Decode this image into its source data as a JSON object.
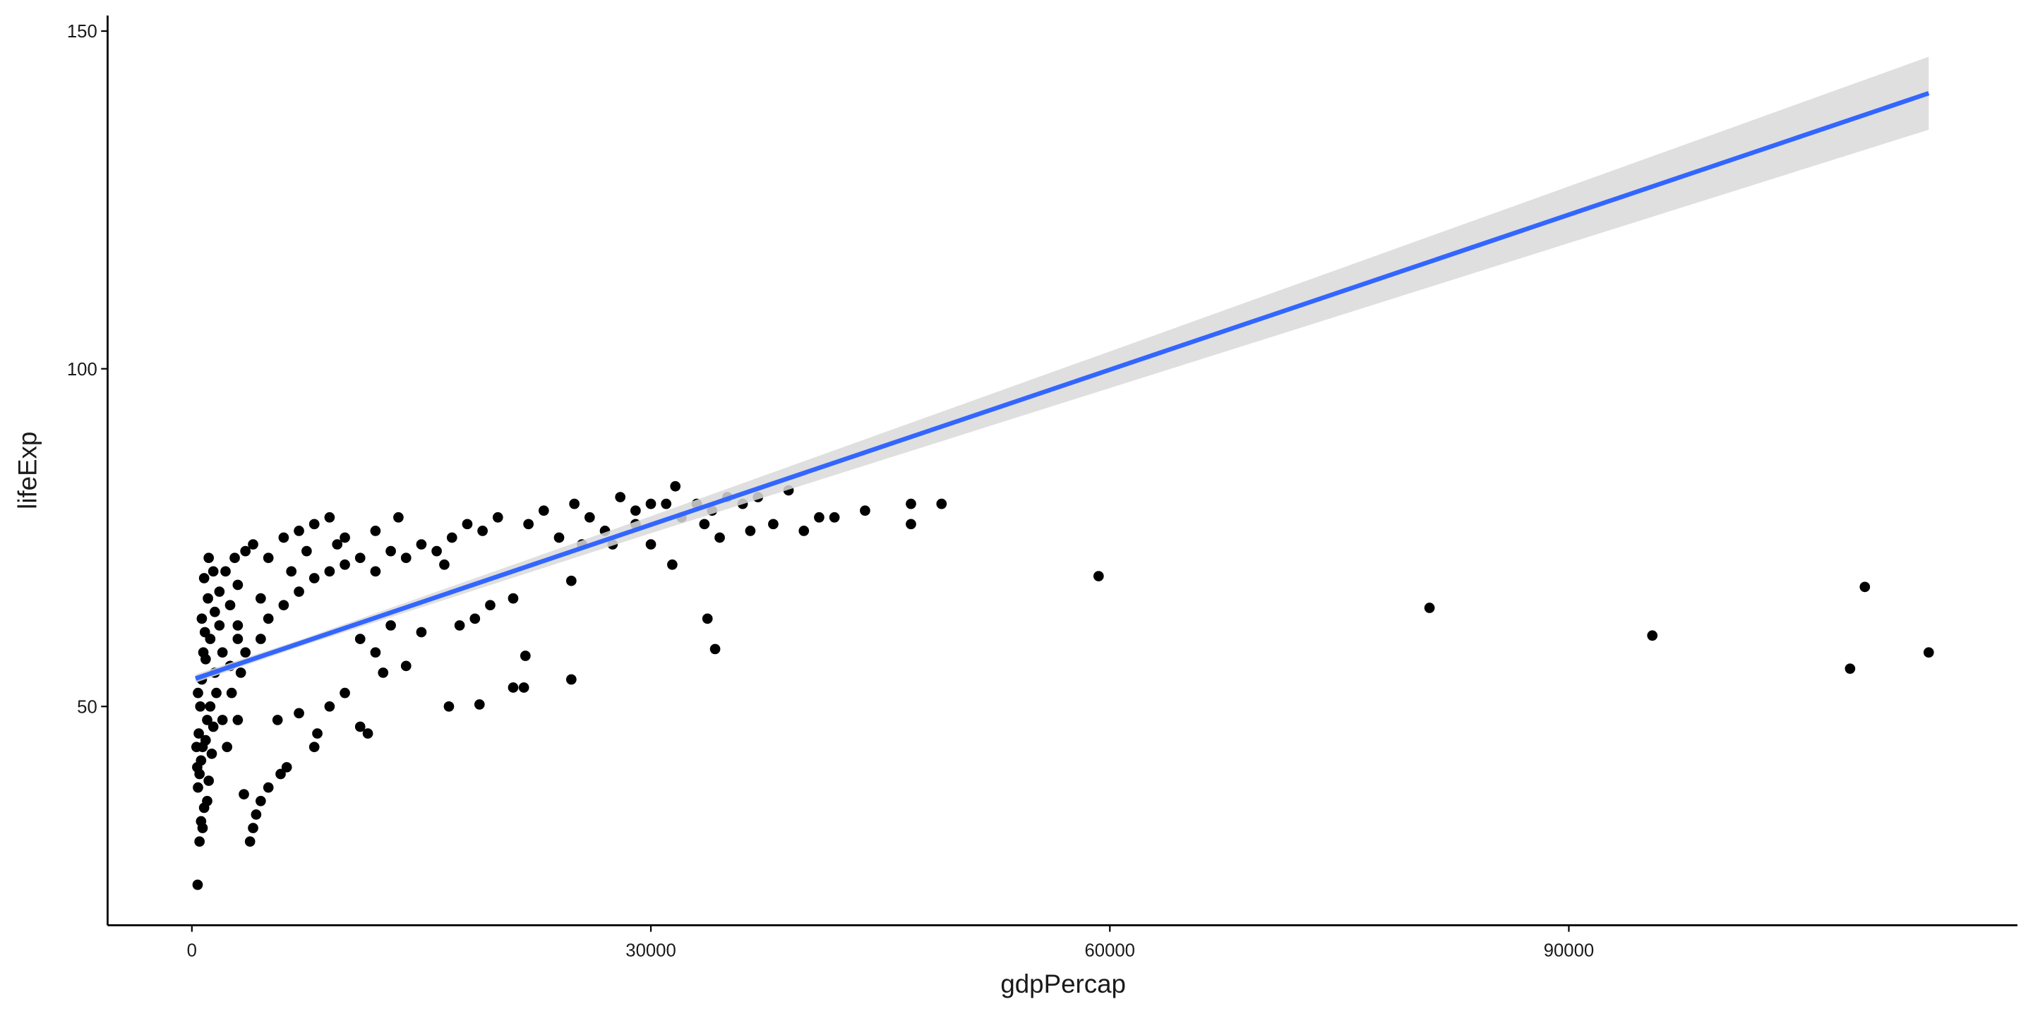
{
  "chart_data": {
    "type": "scatter",
    "x_label": "gdpPercap",
    "y_label": "lifeExp",
    "xlim": [
      -5508,
      119322
    ],
    "ylim": [
      17.6,
      152.3
    ],
    "xticks": [
      0,
      30000,
      60000,
      90000
    ],
    "yticks": [
      50,
      100,
      150
    ],
    "point_color": "#000000",
    "x": [
      376,
      500,
      700,
      800,
      400,
      600,
      900,
      1000,
      1200,
      500,
      700,
      1500,
      2000,
      1800,
      2500,
      3000,
      1000,
      1100,
      1300,
      1400,
      1600,
      900,
      1200,
      1500,
      2200,
      2800,
      3500,
      4000,
      600,
      350,
      450,
      550,
      650,
      750,
      850,
      1050,
      300,
      400,
      2600,
      3000,
      3200,
      3500,
      3800,
      4000,
      4200,
      3400,
      4500,
      5000,
      5800,
      6200,
      5600,
      7000,
      8000,
      8200,
      9000,
      10000,
      11000,
      11500,
      12000,
      12500,
      13000,
      14000,
      15000,
      4500,
      5000,
      6000,
      7000,
      8000,
      9000,
      10000,
      11000,
      12000,
      13000,
      14000,
      15000,
      5000,
      6000,
      7000,
      8000,
      9000,
      10000,
      12000,
      13500,
      16000,
      17000,
      18000,
      19000,
      20000,
      16500,
      17500,
      18500,
      19500,
      21000,
      16800,
      18800,
      21000,
      21700,
      21800,
      24800,
      24800,
      22000,
      23000,
      24000,
      25000,
      26000,
      27000,
      28000,
      29000,
      30000,
      31000,
      31600,
      32000,
      33000,
      34000,
      35000,
      36000,
      37000,
      38000,
      39000,
      40000,
      41000,
      42000,
      44000,
      47000,
      47000,
      49000,
      31400,
      33700,
      34200,
      25500,
      27500,
      30000,
      34500,
      36500,
      29000,
      33500,
      59265,
      80895,
      95458,
      108382,
      109348,
      113523,
      2000,
      2500,
      3000,
      1800,
      1400,
      1100,
      800,
      650,
      4500,
      6500,
      7500,
      9500,
      11000,
      3000,
      2300
    ],
    "y": [
      23.6,
      30,
      32,
      35,
      38,
      42,
      45,
      48,
      50,
      40,
      44,
      55,
      58,
      62,
      65,
      68,
      36,
      39,
      43,
      47,
      52,
      57,
      60,
      64,
      70,
      72,
      73,
      74,
      33,
      41,
      46,
      50,
      54,
      58,
      61,
      66,
      44,
      52,
      52,
      48,
      55,
      58,
      30,
      32,
      34,
      37,
      36,
      38,
      40,
      41,
      48,
      49,
      44,
      46,
      50,
      52,
      47,
      46,
      58,
      55,
      62,
      56,
      61,
      60,
      63,
      65,
      67,
      69,
      70,
      71,
      72,
      70,
      73,
      72,
      74,
      72,
      75,
      76,
      77,
      78,
      75,
      76,
      78,
      73,
      75,
      77,
      76,
      78,
      71,
      62,
      63,
      65,
      66,
      50,
      50.3,
      52.8,
      52.8,
      57.5,
      54,
      68.6,
      77,
      79,
      75,
      80,
      78,
      76,
      81,
      79,
      80,
      80,
      82.6,
      78,
      80,
      79,
      81,
      80,
      81,
      77,
      82,
      76,
      78,
      78,
      79,
      80,
      77,
      80,
      71,
      63,
      58.5,
      74,
      74,
      74,
      75,
      76,
      77,
      77,
      69.3,
      64.6,
      60.5,
      55.6,
      67.7,
      58,
      48,
      56,
      60,
      67,
      70,
      72,
      69,
      63,
      66,
      70,
      73,
      74,
      60,
      62,
      44
    ],
    "fit": {
      "color": "#3366ff",
      "band_color": "#d9d9d9",
      "x": [
        241,
        7215,
        30000,
        60000,
        90000,
        113523
      ],
      "y": [
        54.14,
        59.48,
        76.91,
        99.86,
        122.81,
        140.8
      ],
      "lower": [
        53.53,
        58.98,
        75.65,
        97.15,
        118.61,
        135.4
      ],
      "upper": [
        54.75,
        59.98,
        78.17,
        102.57,
        127.01,
        146.2
      ]
    }
  }
}
